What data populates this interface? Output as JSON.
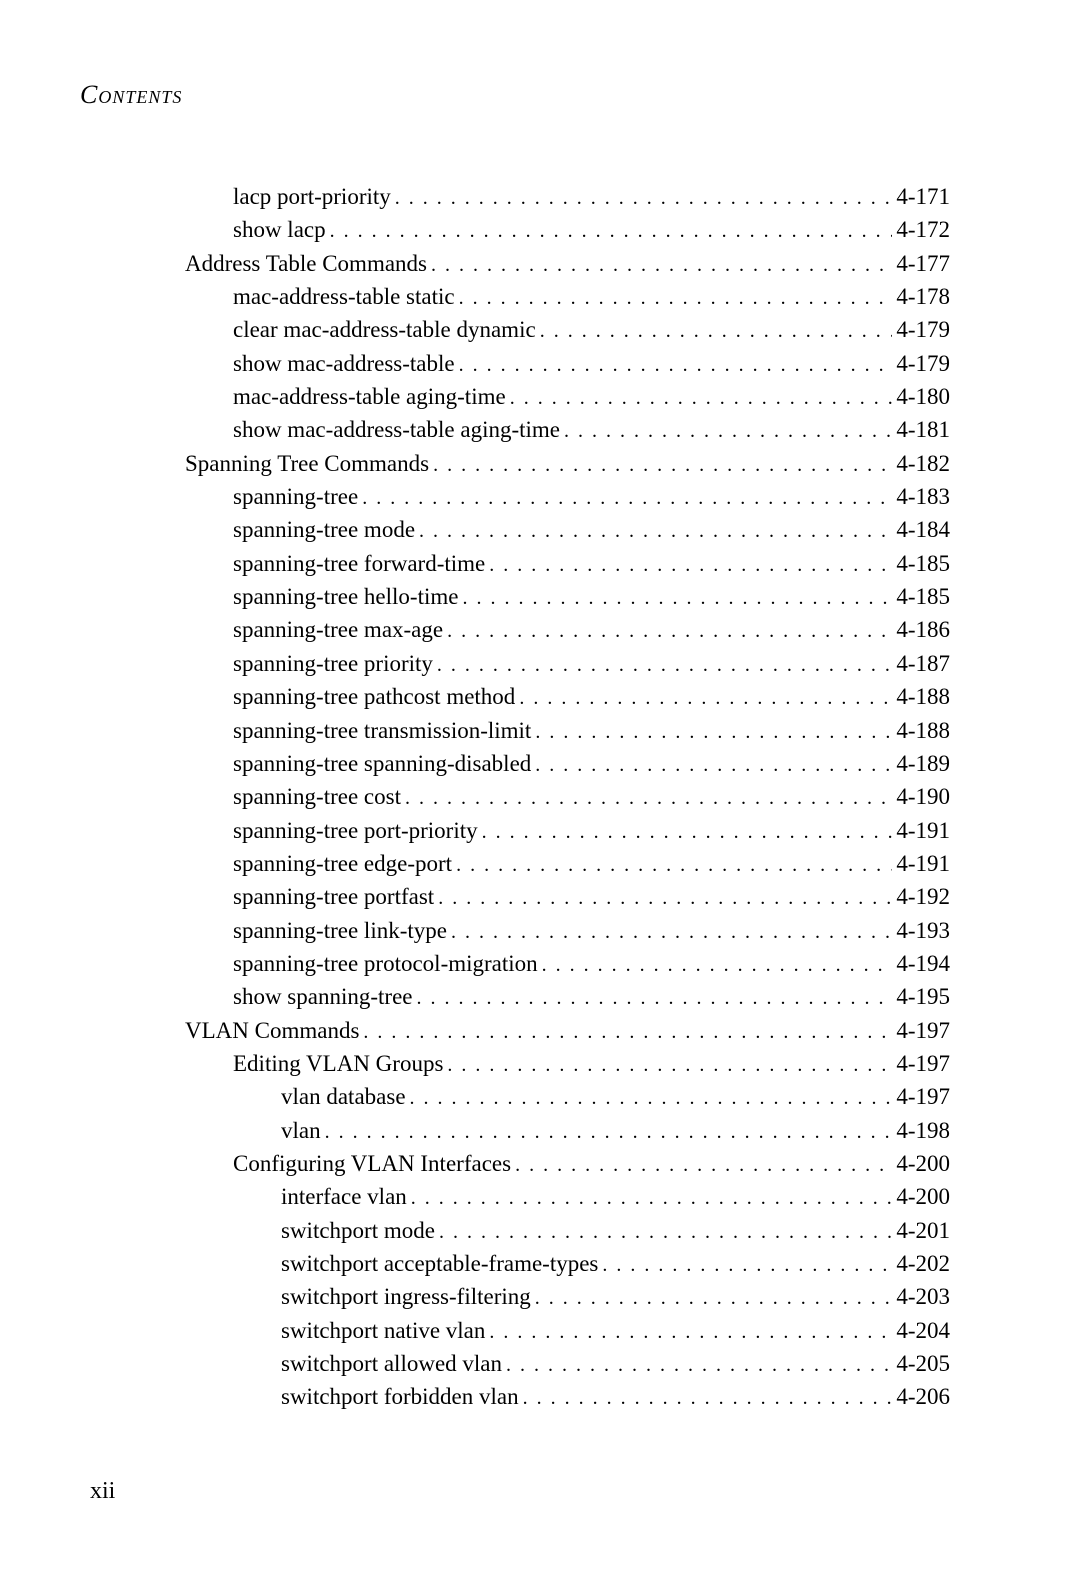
{
  "header": "Contents",
  "page_number": "xii",
  "entries": [
    {
      "indent": 2,
      "label": "lacp port-priority",
      "page": "4-171"
    },
    {
      "indent": 2,
      "label": "show lacp",
      "page": "4-172"
    },
    {
      "indent": 1,
      "label": "Address Table Commands",
      "page": "4-177"
    },
    {
      "indent": 2,
      "label": "mac-address-table static",
      "page": "4-178"
    },
    {
      "indent": 2,
      "label": "clear mac-address-table dynamic",
      "page": "4-179"
    },
    {
      "indent": 2,
      "label": "show mac-address-table",
      "page": "4-179"
    },
    {
      "indent": 2,
      "label": "mac-address-table aging-time",
      "page": "4-180"
    },
    {
      "indent": 2,
      "label": "show mac-address-table aging-time",
      "page": "4-181"
    },
    {
      "indent": 1,
      "label": "Spanning Tree Commands",
      "page": "4-182"
    },
    {
      "indent": 2,
      "label": "spanning-tree",
      "page": "4-183"
    },
    {
      "indent": 2,
      "label": "spanning-tree mode",
      "page": "4-184"
    },
    {
      "indent": 2,
      "label": "spanning-tree forward-time",
      "page": "4-185"
    },
    {
      "indent": 2,
      "label": "spanning-tree hello-time",
      "page": "4-185"
    },
    {
      "indent": 2,
      "label": "spanning-tree max-age",
      "page": "4-186"
    },
    {
      "indent": 2,
      "label": "spanning-tree priority",
      "page": "4-187"
    },
    {
      "indent": 2,
      "label": "spanning-tree pathcost method",
      "page": "4-188"
    },
    {
      "indent": 2,
      "label": "spanning-tree transmission-limit",
      "page": "4-188"
    },
    {
      "indent": 2,
      "label": "spanning-tree spanning-disabled",
      "page": "4-189"
    },
    {
      "indent": 2,
      "label": "spanning-tree cost",
      "page": "4-190"
    },
    {
      "indent": 2,
      "label": "spanning-tree port-priority",
      "page": "4-191"
    },
    {
      "indent": 2,
      "label": "spanning-tree edge-port",
      "page": "4-191"
    },
    {
      "indent": 2,
      "label": "spanning-tree portfast",
      "page": "4-192"
    },
    {
      "indent": 2,
      "label": "spanning-tree link-type",
      "page": "4-193"
    },
    {
      "indent": 2,
      "label": "spanning-tree protocol-migration",
      "page": "4-194"
    },
    {
      "indent": 2,
      "label": "show spanning-tree",
      "page": "4-195"
    },
    {
      "indent": 1,
      "label": "VLAN Commands",
      "page": "4-197"
    },
    {
      "indent": 2,
      "label": "Editing VLAN Groups",
      "page": "4-197"
    },
    {
      "indent": 3,
      "label": "vlan database",
      "page": "4-197"
    },
    {
      "indent": 3,
      "label": "vlan",
      "page": "4-198"
    },
    {
      "indent": 2,
      "label": "Configuring VLAN Interfaces",
      "page": "4-200"
    },
    {
      "indent": 3,
      "label": "interface vlan",
      "page": "4-200"
    },
    {
      "indent": 3,
      "label": "switchport mode",
      "page": "4-201"
    },
    {
      "indent": 3,
      "label": "switchport acceptable-frame-types",
      "page": "4-202"
    },
    {
      "indent": 3,
      "label": "switchport ingress-filtering",
      "page": "4-203"
    },
    {
      "indent": 3,
      "label": "switchport native vlan",
      "page": "4-204"
    },
    {
      "indent": 3,
      "label": "switchport allowed vlan",
      "page": "4-205"
    },
    {
      "indent": 3,
      "label": "switchport forbidden vlan",
      "page": "4-206"
    }
  ]
}
